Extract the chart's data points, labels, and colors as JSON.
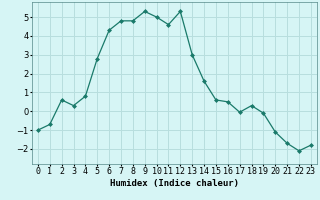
{
  "x": [
    0,
    1,
    2,
    3,
    4,
    5,
    6,
    7,
    8,
    9,
    10,
    11,
    12,
    13,
    14,
    15,
    16,
    17,
    18,
    19,
    20,
    21,
    22,
    23
  ],
  "y": [
    -1.0,
    -0.7,
    0.6,
    0.3,
    0.8,
    2.8,
    4.3,
    4.8,
    4.8,
    5.3,
    5.0,
    4.6,
    5.3,
    3.0,
    1.6,
    0.6,
    0.5,
    -0.05,
    0.3,
    -0.1,
    -1.1,
    -1.7,
    -2.1,
    -1.8
  ],
  "line_color": "#1a7a6a",
  "marker": "D",
  "marker_size": 2.0,
  "bg_color": "#d6f5f5",
  "grid_color": "#b8dede",
  "xlabel": "Humidex (Indice chaleur)",
  "ylim": [
    -2.8,
    5.8
  ],
  "xlim": [
    -0.5,
    23.5
  ],
  "yticks": [
    -2,
    -1,
    0,
    1,
    2,
    3,
    4,
    5
  ],
  "xtick_labels": [
    "0",
    "1",
    "2",
    "3",
    "4",
    "5",
    "6",
    "7",
    "8",
    "9",
    "10",
    "11",
    "12",
    "13",
    "14",
    "15",
    "16",
    "17",
    "18",
    "19",
    "20",
    "21",
    "22",
    "23"
  ],
  "label_fontsize": 6.5,
  "tick_fontsize": 6.0,
  "line_width": 0.9
}
